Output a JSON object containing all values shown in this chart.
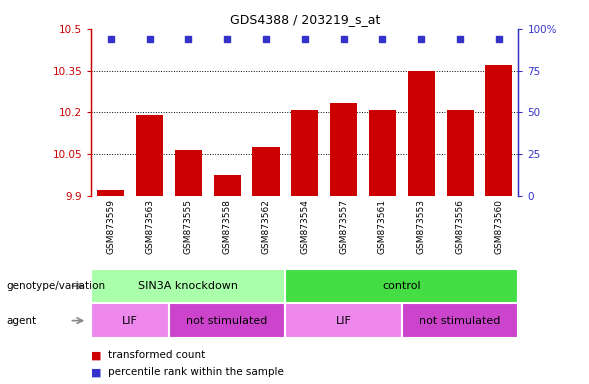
{
  "title": "GDS4388 / 203219_s_at",
  "samples": [
    "GSM873559",
    "GSM873563",
    "GSM873555",
    "GSM873558",
    "GSM873562",
    "GSM873554",
    "GSM873557",
    "GSM873561",
    "GSM873553",
    "GSM873556",
    "GSM873560"
  ],
  "bar_values": [
    9.92,
    10.19,
    10.065,
    9.975,
    10.075,
    10.21,
    10.235,
    10.21,
    10.35,
    10.21,
    10.37
  ],
  "percentile_values": [
    100,
    100,
    100,
    100,
    100,
    100,
    100,
    100,
    100,
    100,
    100
  ],
  "ylim": [
    9.9,
    10.5
  ],
  "yticks": [
    9.9,
    10.05,
    10.2,
    10.35,
    10.5
  ],
  "ytick_labels": [
    "9.9",
    "10.05",
    "10.2",
    "10.35",
    "10.5"
  ],
  "right_yticks": [
    0,
    25,
    50,
    75,
    100
  ],
  "right_ytick_labels": [
    "0",
    "25",
    "50",
    "75",
    "100%"
  ],
  "bar_color": "#cc0000",
  "dot_color": "#3333cc",
  "bg_color": "#ffffff",
  "xtick_bg": "#cccccc",
  "genotype_colors": [
    "#aaffaa",
    "#44dd44"
  ],
  "agent_color": "#dd66dd",
  "agent_lif_color": "#ee88ee",
  "agent_notstim_color": "#cc44cc",
  "genotype_groups": [
    {
      "label": "SIN3A knockdown",
      "start": 0,
      "end": 5,
      "color": "#aaffaa"
    },
    {
      "label": "control",
      "start": 5,
      "end": 11,
      "color": "#44dd44"
    }
  ],
  "agent_groups": [
    {
      "label": "LIF",
      "start": 0,
      "end": 2,
      "color": "#ee88ee"
    },
    {
      "label": "not stimulated",
      "start": 2,
      "end": 5,
      "color": "#cc44cc"
    },
    {
      "label": "LIF",
      "start": 5,
      "end": 8,
      "color": "#ee88ee"
    },
    {
      "label": "not stimulated",
      "start": 8,
      "end": 11,
      "color": "#cc44cc"
    }
  ],
  "legend_items": [
    {
      "label": "transformed count",
      "color": "#cc0000"
    },
    {
      "label": "percentile rank within the sample",
      "color": "#3333cc"
    }
  ]
}
